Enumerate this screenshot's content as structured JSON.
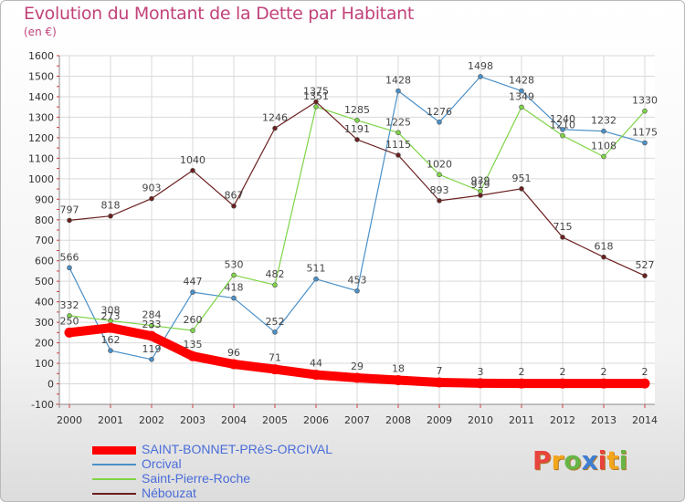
{
  "title": "Evolution du Montant de la Dette par Habitant",
  "unit": "(en €)",
  "brand": {
    "letters": [
      "P",
      "r",
      "o",
      "x",
      "i",
      "t",
      "i"
    ],
    "colors": [
      "#e8433c",
      "#f3a51b",
      "#67b547",
      "#3f7fd2",
      "#e8433c",
      "#f3a51b",
      "#67b547"
    ]
  },
  "colors": {
    "title": "#c2427a",
    "legend_text": "#4a6cd9",
    "grid": "#d9d9d9",
    "axis": "#888888"
  },
  "chart_data": {
    "type": "line",
    "x": [
      "2000",
      "2001",
      "2002",
      "2003",
      "2004",
      "2005",
      "2006",
      "2007",
      "2008",
      "2009",
      "2010",
      "2011",
      "2012",
      "2013",
      "2014"
    ],
    "ylim": [
      -100,
      1600
    ],
    "yticks": [
      -100,
      0,
      100,
      200,
      300,
      400,
      500,
      600,
      700,
      800,
      900,
      1000,
      1100,
      1200,
      1300,
      1400,
      1500,
      1600
    ],
    "grid": true,
    "legend_position": "bottom-left",
    "series": [
      {
        "name": "SAINT-BONNET-PRèS-ORCIVAL",
        "color": "#ff0000",
        "width": 10,
        "marker": 11,
        "values": [
          250,
          273,
          233,
          135,
          96,
          71,
          44,
          29,
          18,
          7,
          3,
          2,
          2,
          2,
          2
        ],
        "labels": [
          "250",
          "273",
          "233",
          "135",
          "96",
          "71",
          "44",
          "29",
          "18",
          "7",
          "3",
          "2",
          "2",
          "2",
          "2"
        ]
      },
      {
        "name": "Orcival",
        "color": "#4a90c8",
        "width": 1.2,
        "marker": 5,
        "values": [
          566,
          162,
          119,
          447,
          418,
          252,
          511,
          453,
          1428,
          1276,
          1498,
          1428,
          1240,
          1232,
          1175
        ],
        "labels": [
          "566",
          "162",
          "119",
          "447",
          "418",
          "252",
          "511",
          "453",
          "1428",
          "1276",
          "1498",
          "1428",
          "1240",
          "1232",
          "1175"
        ]
      },
      {
        "name": "Saint-Pierre-Roche",
        "color": "#7ed447",
        "width": 1.2,
        "marker": 5,
        "values": [
          332,
          308,
          284,
          260,
          530,
          482,
          1351,
          1285,
          1225,
          1020,
          939,
          1349,
          1210,
          1108,
          1330
        ],
        "labels": [
          "332",
          "308",
          "284",
          "260",
          "530",
          "482",
          "1351",
          "1285",
          "1225",
          "1020",
          "939",
          "1349",
          "1210",
          "1108",
          "1330"
        ]
      },
      {
        "name": "Nébouzat",
        "color": "#6b1f1f",
        "width": 1.2,
        "marker": 5,
        "values": [
          797,
          818,
          903,
          1040,
          867,
          1246,
          1375,
          1191,
          1115,
          893,
          919,
          951,
          715,
          618,
          527
        ],
        "labels": [
          "797",
          "818",
          "903",
          "1040",
          "867",
          "1246",
          "1375",
          "1191",
          "1115",
          "893",
          "919",
          "951",
          "715",
          "618",
          "527"
        ]
      }
    ]
  }
}
